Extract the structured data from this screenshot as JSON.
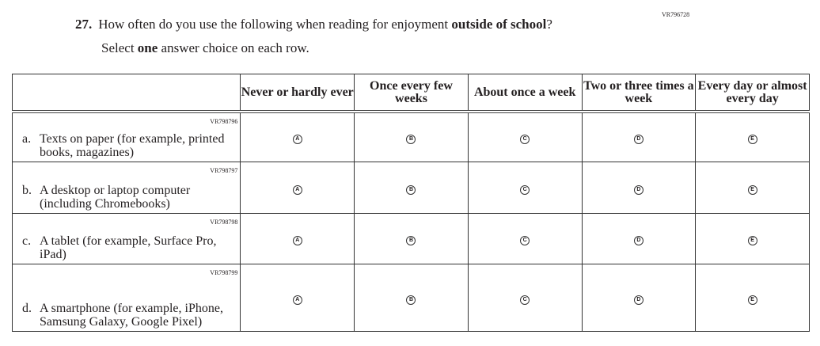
{
  "question": {
    "code": "VR796728",
    "number": "27.",
    "text_before": "How often do you use the following when reading for enjoyment ",
    "text_bold": "outside of school",
    "text_after": "?",
    "instruction_before": "Select ",
    "instruction_bold": "one",
    "instruction_after": " answer choice on each row."
  },
  "columns": [
    "Never or hardly ever",
    "Once every few weeks",
    "About once a week",
    "Two or three times a week",
    "Every day or almost every day"
  ],
  "choice_letters": [
    "A",
    "B",
    "C",
    "D",
    "E"
  ],
  "rows": [
    {
      "code": "VR798796",
      "letter": "a.",
      "text": "Texts on paper (for example, printed books, magazines)"
    },
    {
      "code": "VR798797",
      "letter": "b.",
      "text": "A desktop or laptop computer (including Chromebooks)"
    },
    {
      "code": "VR798798",
      "letter": "c.",
      "text": "A tablet (for example, Surface Pro, iPad)"
    },
    {
      "code": "VR798799",
      "letter": "d.",
      "text": "A smartphone (for example, iPhone, Samsung Galaxy, Google Pixel)"
    }
  ]
}
